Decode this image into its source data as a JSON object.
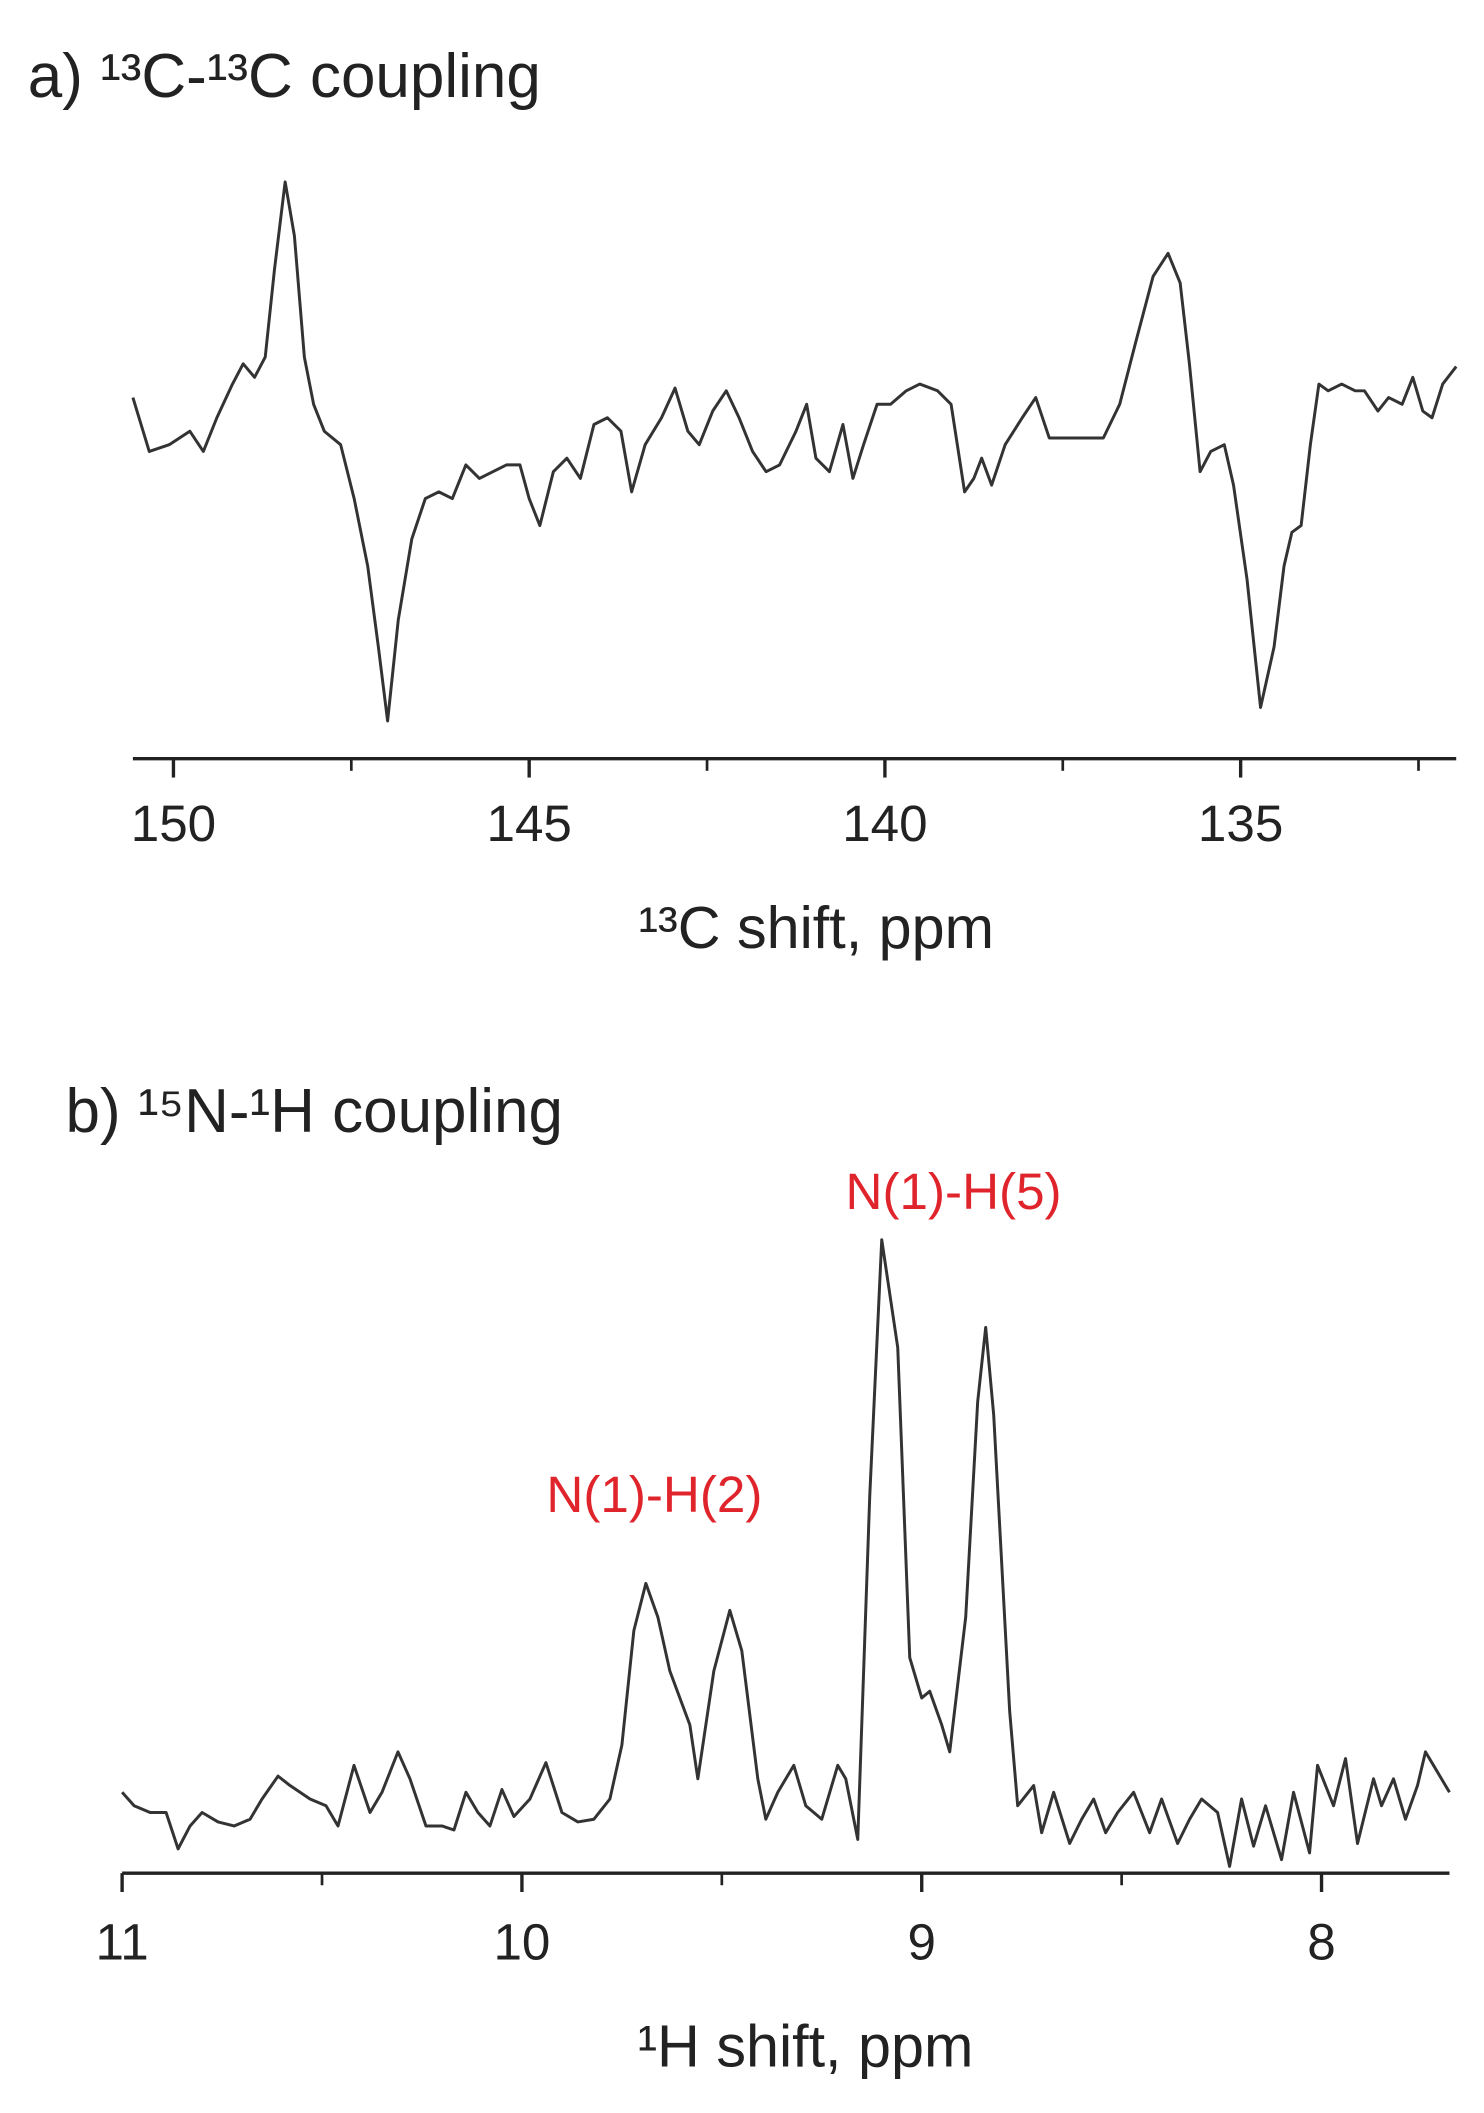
{
  "chart_data": [
    {
      "type": "line",
      "title": "a) ¹³C-¹³C coupling",
      "x_label": "¹³C shift, ppm",
      "color": "#333333",
      "xlim": [
        150.57,
        131.97
      ],
      "xticks": [
        150,
        145,
        140,
        135
      ],
      "xminorticks": [
        147.5,
        142.5,
        137.5,
        132.5
      ],
      "ylim": [
        -2.43,
        2.0
      ],
      "x": [
        150.57,
        150.34,
        150.06,
        149.77,
        149.58,
        149.39,
        149.17,
        149.02,
        148.86,
        148.71,
        148.58,
        148.43,
        148.3,
        148.16,
        148.03,
        147.88,
        147.65,
        147.46,
        147.27,
        147.12,
        146.99,
        146.84,
        146.65,
        146.46,
        146.27,
        146.08,
        145.89,
        145.7,
        145.51,
        145.32,
        145.13,
        145.0,
        144.85,
        144.66,
        144.47,
        144.28,
        144.09,
        143.9,
        143.71,
        143.56,
        143.37,
        143.14,
        142.95,
        142.77,
        142.61,
        142.42,
        142.23,
        142.05,
        141.86,
        141.67,
        141.48,
        141.25,
        141.1,
        140.97,
        140.78,
        140.59,
        140.45,
        140.3,
        140.11,
        139.92,
        139.7,
        139.51,
        139.26,
        139.07,
        138.88,
        138.75,
        138.64,
        138.5,
        138.31,
        138.07,
        137.88,
        137.69,
        137.46,
        137.18,
        136.93,
        136.7,
        136.48,
        136.23,
        136.02,
        135.85,
        135.72,
        135.57,
        135.42,
        135.23,
        135.1,
        134.91,
        134.72,
        134.53,
        134.39,
        134.28,
        134.15,
        134.02,
        133.9,
        133.77,
        133.58,
        133.39,
        133.26,
        133.07,
        132.92,
        132.73,
        132.58,
        132.44,
        132.31,
        132.16,
        131.97
      ],
      "values": [
        0.25,
        -0.15,
        -0.1,
        0,
        -0.15,
        0.1,
        0.35,
        0.5,
        0.4,
        0.55,
        1.2,
        1.85,
        1.45,
        0.55,
        0.2,
        0,
        -0.1,
        -0.5,
        -1.0,
        -1.6,
        -2.15,
        -1.4,
        -0.8,
        -0.5,
        -0.45,
        -0.5,
        -0.25,
        -0.35,
        -0.3,
        -0.25,
        -0.25,
        -0.5,
        -0.7,
        -0.3,
        -0.2,
        -0.35,
        0.05,
        0.1,
        0,
        -0.45,
        -0.1,
        0.1,
        0.32,
        0,
        -0.1,
        0.15,
        0.3,
        0.1,
        -0.15,
        -0.3,
        -0.25,
        0,
        0.2,
        -0.2,
        -0.3,
        0.05,
        -0.35,
        -0.1,
        0.2,
        0.2,
        0.3,
        0.35,
        0.3,
        0.2,
        -0.45,
        -0.35,
        -0.2,
        -0.4,
        -0.1,
        0.1,
        0.25,
        -0.05,
        -0.05,
        -0.05,
        -0.05,
        0.2,
        0.65,
        1.15,
        1.32,
        1.1,
        0.5,
        -0.3,
        -0.15,
        -0.1,
        -0.4,
        -1.1,
        -2.05,
        -1.6,
        -1.0,
        -0.75,
        -0.7,
        -0.1,
        0.35,
        0.3,
        0.35,
        0.3,
        0.3,
        0.15,
        0.25,
        0.2,
        0.4,
        0.15,
        0.1,
        0.35,
        0.48
      ]
    },
    {
      "type": "line",
      "title": "b) ¹⁵N-¹H coupling",
      "x_label": "¹H shift, ppm",
      "color": "#333333",
      "xlim": [
        11.0,
        7.68
      ],
      "xticks": [
        11,
        10,
        9,
        8
      ],
      "xminorticks": [
        10.5,
        9.5,
        8.5
      ],
      "ylim": [
        -0.4,
        4.5
      ],
      "annotations": [
        {
          "text": "N(1)-H(5)",
          "color": "#e0242c"
        },
        {
          "text": "N(1)-H(2)",
          "color": "#e0242c"
        }
      ],
      "x": [
        11.0,
        10.97,
        10.93,
        10.89,
        10.86,
        10.83,
        10.8,
        10.76,
        10.72,
        10.68,
        10.65,
        10.61,
        10.58,
        10.53,
        10.49,
        10.46,
        10.42,
        10.38,
        10.35,
        10.31,
        10.28,
        10.24,
        10.2,
        10.17,
        10.14,
        10.11,
        10.08,
        10.05,
        10.02,
        9.98,
        9.94,
        9.9,
        9.86,
        9.82,
        9.78,
        9.75,
        9.72,
        9.69,
        9.66,
        9.63,
        9.58,
        9.56,
        9.52,
        9.48,
        9.45,
        9.41,
        9.39,
        9.36,
        9.32,
        9.29,
        9.25,
        9.21,
        9.19,
        9.16,
        9.13,
        9.1,
        9.06,
        9.03,
        9.0,
        8.98,
        8.95,
        8.93,
        8.89,
        8.86,
        8.84,
        8.82,
        8.78,
        8.76,
        8.72,
        8.7,
        8.67,
        8.63,
        8.6,
        8.57,
        8.54,
        8.51,
        8.47,
        8.43,
        8.4,
        8.36,
        8.33,
        8.3,
        8.26,
        8.23,
        8.2,
        8.17,
        8.14,
        8.1,
        8.07,
        8.03,
        8.01,
        7.97,
        7.94,
        7.91,
        7.87,
        7.85,
        7.82,
        7.79,
        7.76,
        7.74,
        7.71,
        7.68
      ],
      "values": [
        0.2,
        0.1,
        0.05,
        0.05,
        -0.22,
        -0.05,
        0.05,
        -0.02,
        -0.05,
        0,
        0.15,
        0.32,
        0.25,
        0.15,
        0.1,
        -0.05,
        0.4,
        0.05,
        0.2,
        0.5,
        0.3,
        -0.05,
        -0.05,
        -0.08,
        0.2,
        0.05,
        -0.05,
        0.22,
        0.02,
        0.15,
        0.42,
        0.05,
        -0.02,
        0,
        0.15,
        0.55,
        1.4,
        1.75,
        1.5,
        1.1,
        0.7,
        0.3,
        1.1,
        1.55,
        1.25,
        0.3,
        0,
        0.2,
        0.4,
        0.1,
        0,
        0.4,
        0.3,
        -0.15,
        2.4,
        4.3,
        3.5,
        1.2,
        0.9,
        0.95,
        0.7,
        0.5,
        1.5,
        3.1,
        3.65,
        3.0,
        0.8,
        0.1,
        0.25,
        -0.1,
        0.2,
        -0.18,
        0,
        0.15,
        -0.1,
        0.05,
        0.2,
        -0.1,
        0.15,
        -0.18,
        0,
        0.15,
        0.05,
        -0.35,
        0.15,
        -0.2,
        0.1,
        -0.3,
        0.2,
        -0.25,
        0.4,
        0.1,
        0.45,
        -0.18,
        0.3,
        0.1,
        0.3,
        0,
        0.25,
        0.5,
        0.35,
        0.2
      ]
    }
  ]
}
